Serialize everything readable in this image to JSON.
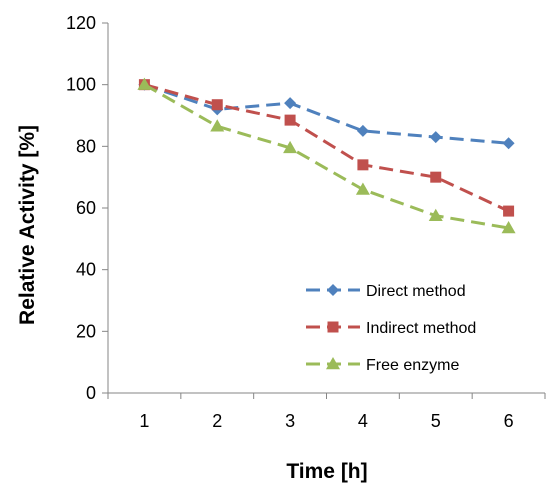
{
  "chart_data": {
    "type": "line",
    "title": "",
    "xlabel": "Time [h]",
    "ylabel": "Relative Activity [%]",
    "categories": [
      "1",
      "2",
      "3",
      "4",
      "5",
      "6"
    ],
    "ylim": [
      0,
      120
    ],
    "yticks": [
      "0",
      "20",
      "40",
      "60",
      "80",
      "100",
      "120"
    ],
    "grid": false,
    "legend_position": "bottom-right",
    "series": [
      {
        "name": "Direct method",
        "values": [
          100,
          92,
          94,
          85,
          83,
          81
        ],
        "color": "#4f81bd",
        "marker": "diamond"
      },
      {
        "name": "Indirect method",
        "values": [
          100,
          93.5,
          88.5,
          74,
          70,
          59
        ],
        "color": "#c0504d",
        "marker": "square"
      },
      {
        "name": "Free enzyme",
        "values": [
          100,
          86.5,
          79.5,
          66,
          57.5,
          53.5
        ],
        "color": "#9bbb59",
        "marker": "triangle"
      }
    ]
  }
}
